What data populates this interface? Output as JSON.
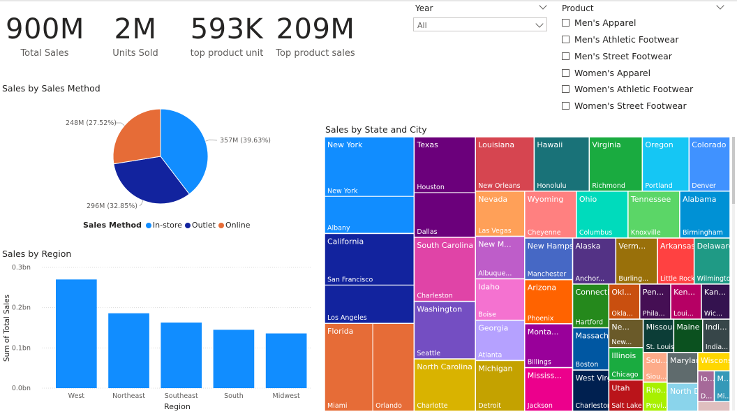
{
  "kpis": [
    {
      "value": "900M",
      "label": "Total Sales"
    },
    {
      "value": "2M",
      "label": "Units Sold"
    },
    {
      "value": "593K",
      "label": "top product unit"
    },
    {
      "value": "209M",
      "label": "Top product sales"
    }
  ],
  "slicers": {
    "year": {
      "title": "Year",
      "selected": "All"
    },
    "product": {
      "title": "Product",
      "items": [
        "Men's Apparel",
        "Men's Athletic Footwear",
        "Men's Street Footwear",
        "Women's Apparel",
        "Women's Athletic Footwear",
        "Women's Street Footwear"
      ]
    }
  },
  "chart_data": [
    {
      "type": "pie",
      "title": "Sales by Sales Method",
      "legend_title": "Sales Method",
      "legend_position": "bottom",
      "slices": [
        {
          "name": "In-store",
          "value": 357,
          "label": "357M (39.63%)",
          "color": "#118DFF"
        },
        {
          "name": "Outlet",
          "value": 296,
          "label": "296M (32.85%)",
          "color": "#12239E"
        },
        {
          "name": "Online",
          "value": 248,
          "label": "248M (27.52%)",
          "color": "#E66C37"
        }
      ]
    },
    {
      "type": "bar",
      "title": "Sales by Region",
      "xlabel": "Region",
      "ylabel": "Sum of Total Sales",
      "categories": [
        "West",
        "Northeast",
        "Southeast",
        "South",
        "Midwest"
      ],
      "values": [
        0.27,
        0.186,
        0.163,
        0.145,
        0.136
      ],
      "ylim": [
        0,
        0.3
      ],
      "yticks": [
        "0.0bn",
        "0.1bn",
        "0.2bn",
        "0.3bn"
      ],
      "grid": true,
      "color": "#118DFF"
    },
    {
      "type": "treemap",
      "title": "Sales by State and City",
      "states": [
        {
          "name": "New York",
          "color": "#118DFF",
          "cities": [
            {
              "name": "New York",
              "value": 39.8
            },
            {
              "name": "Albany",
              "value": 24.8
            }
          ]
        },
        {
          "name": "California",
          "color": "#12239E",
          "cities": [
            {
              "name": "San Francisco",
              "value": 34.5
            },
            {
              "name": "Los Angeles",
              "value": 25.6
            }
          ]
        },
        {
          "name": "Florida",
          "color": "#E66C37",
          "cities": [
            {
              "name": "Miami",
              "value": 31.6
            },
            {
              "name": "Orlando",
              "value": 27.1
            }
          ]
        },
        {
          "name": "Texas",
          "color": "#6B007B",
          "cities": [
            {
              "name": "Houston",
              "value": 25.5
            },
            {
              "name": "Dallas",
              "value": 20.4
            }
          ]
        },
        {
          "name": "South Carolina",
          "color": "#E044A7",
          "cities": [
            {
              "name": "Charleston",
              "value": 29.3
            }
          ]
        },
        {
          "name": "Washington",
          "color": "#744EC2",
          "cities": [
            {
              "name": "Seattle",
              "value": 26.3
            }
          ]
        },
        {
          "name": "North Carolina",
          "color": "#D9B300",
          "cities": [
            {
              "name": "Charlotte",
              "value": 23.9
            }
          ]
        },
        {
          "name": "Louisiana",
          "color": "#D64550",
          "cities": [
            {
              "name": "New Orleans",
              "value": 23.8
            }
          ]
        },
        {
          "name": "Hawaii",
          "color": "#197278",
          "cities": [
            {
              "name": "Honolulu",
              "value": 22.3
            }
          ]
        },
        {
          "name": "Virginia",
          "color": "#1AAB40",
          "cities": [
            {
              "name": "Richmond",
              "value": 21.5
            }
          ]
        },
        {
          "name": "Oregon",
          "color": "#15C6F4",
          "cities": [
            {
              "name": "Portland",
              "value": 18.9
            }
          ]
        },
        {
          "name": "Colorado",
          "color": "#4092FF",
          "cities": [
            {
              "name": "Denver",
              "value": 16.6
            }
          ]
        },
        {
          "name": "Nevada",
          "color": "#FFA058",
          "cities": [
            {
              "name": "Las Vegas",
              "value": 16.6
            }
          ]
        },
        {
          "name": "New M...",
          "color": "#BE5DC9",
          "cities": [
            {
              "name": "Albuque...",
              "value": 15.6
            }
          ]
        },
        {
          "name": "Idaho",
          "color": "#F472D0",
          "cities": [
            {
              "name": "Boise",
              "value": 15.2
            }
          ]
        },
        {
          "name": "Georgia",
          "color": "#B5A1FF",
          "cities": [
            {
              "name": "Atlanta",
              "value": 14.8
            }
          ]
        },
        {
          "name": "Michigan",
          "color": "#C4A200",
          "cities": [
            {
              "name": "Detroit",
              "value": 18.6
            }
          ]
        },
        {
          "name": "Wyoming",
          "color": "#FF8080",
          "cities": [
            {
              "name": "Cheyenne",
              "value": 18.1
            }
          ]
        },
        {
          "name": "Ohio",
          "color": "#00DBBC",
          "cities": [
            {
              "name": "Columbus",
              "value": 18.1
            }
          ]
        },
        {
          "name": "Tennessee",
          "color": "#5BD667",
          "cities": [
            {
              "name": "Knoxville",
              "value": 18.1
            }
          ]
        },
        {
          "name": "Alabama",
          "color": "#0091D5",
          "cities": [
            {
              "name": "Birmingham",
              "value": 17.6
            }
          ]
        },
        {
          "name": "New Hampshire",
          "color": "#4668C5",
          "cities": [
            {
              "name": "Manchester",
              "value": 14.9
            }
          ]
        },
        {
          "name": "Arizona",
          "color": "#FF6300",
          "cities": [
            {
              "name": "Phoenix",
              "value": 15.8
            }
          ]
        },
        {
          "name": "Monta...",
          "color": "#99009A",
          "cities": [
            {
              "name": "Billings",
              "value": 15.7
            }
          ]
        },
        {
          "name": "Mississ...",
          "color": "#EC008C",
          "cities": [
            {
              "name": "Jackson",
              "value": 15.6
            }
          ]
        },
        {
          "name": "Alaska",
          "color": "#533285",
          "cities": [
            {
              "name": "Anchor...",
              "value": 14.8
            }
          ]
        },
        {
          "name": "Verm...",
          "color": "#99700A",
          "cities": [
            {
              "name": "Burling...",
              "value": 14.3
            }
          ]
        },
        {
          "name": "Arkansas",
          "color": "#FF4141",
          "cities": [
            {
              "name": "Little Rock",
              "value": 12.6
            }
          ]
        },
        {
          "name": "Delaware",
          "color": "#1F9A85",
          "cities": [
            {
              "name": "Wilmington",
              "value": 12.3
            }
          ]
        },
        {
          "name": "Connecticut",
          "color": "#25891C",
          "cities": [
            {
              "name": "Hartford",
              "value": 11.8
            }
          ]
        },
        {
          "name": "Massachu...",
          "color": "#0057A2",
          "cities": [
            {
              "name": "Boston",
              "value": 11.4
            }
          ]
        },
        {
          "name": "West Virgi...",
          "color": "#002050",
          "cities": [
            {
              "name": "Charleston",
              "value": 11.1
            }
          ]
        },
        {
          "name": "Okl...",
          "color": "#C94F0F",
          "cities": [
            {
              "name": "Okla...",
              "value": 8.1
            }
          ]
        },
        {
          "name": "Pen...",
          "color": "#450F54",
          "cities": [
            {
              "name": "Phila...",
              "value": 8.1
            }
          ]
        },
        {
          "name": "Ken...",
          "color": "#B60064",
          "cities": [
            {
              "name": "Loui...",
              "value": 8.0
            }
          ]
        },
        {
          "name": "Kan...",
          "color": "#34124F",
          "cities": [
            {
              "name": "Wic...",
              "value": 7.5
            }
          ]
        },
        {
          "name": "Ne...",
          "color": "#6A5A29",
          "cities": [
            {
              "name": "New...",
              "value": 7.3
            }
          ]
        },
        {
          "name": "Illinois",
          "color": "#1AAB40",
          "cities": [
            {
              "name": "Chicago",
              "value": 8.3
            }
          ]
        },
        {
          "name": "Utah",
          "color": "#BA141A",
          "cities": [
            {
              "name": "Salt Lake C...",
              "value": 8.0
            }
          ]
        },
        {
          "name": "Missouri",
          "color": "#0C3D37",
          "cities": [
            {
              "name": "St. Louis",
              "value": 7.6
            }
          ]
        },
        {
          "name": "Maine",
          "color": "#0B511F",
          "cities": [
            {
              "name": "",
              "value": 7.2
            }
          ]
        },
        {
          "name": "Indi...",
          "color": "#374649",
          "cities": [
            {
              "name": "India...",
              "value": 6.8
            }
          ]
        },
        {
          "name": "Sou...",
          "color": "#FDAB89",
          "cities": [
            {
              "name": "Siou...",
              "value": 5.3
            }
          ]
        },
        {
          "name": "Rho...",
          "color": "#A8F000",
          "cities": [
            {
              "name": "Provi...",
              "value": 5.2
            }
          ]
        },
        {
          "name": "Maryland",
          "color": "#5F6B6D",
          "cities": [
            {
              "name": "",
              "value": 7.0
            }
          ]
        },
        {
          "name": "North Da...",
          "color": "#8AD4EB",
          "cities": [
            {
              "name": "",
              "value": 6.4
            }
          ]
        },
        {
          "name": "Wisconsin",
          "color": "#FFD700",
          "cities": [
            {
              "name": "",
              "value": 4.4
            }
          ]
        },
        {
          "name": "Io...",
          "color": "#A66999",
          "cities": [
            {
              "name": "D...",
              "value": 3.8
            }
          ]
        },
        {
          "name": "M...",
          "color": "#3599B8",
          "cities": [
            {
              "name": "Mi...",
              "value": 3.6
            }
          ]
        },
        {
          "name": "Nebraska",
          "color": "#DFBFBF",
          "cities": [
            {
              "name": "",
              "value": 2.3
            }
          ]
        }
      ]
    }
  ]
}
